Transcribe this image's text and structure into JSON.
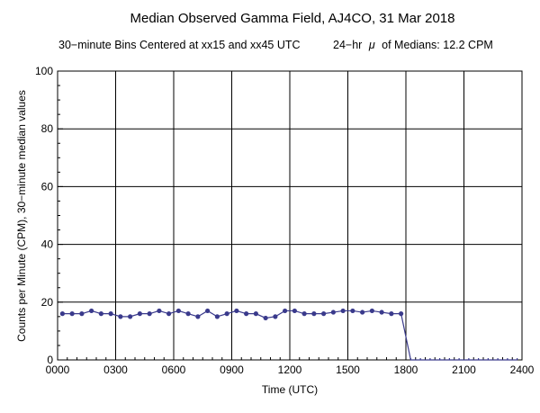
{
  "chart_data": {
    "type": "line",
    "title": "Median Observed Gamma Field, AJ4CO, 31 Mar 2018",
    "subtitle_left": "30−minute Bins Centered at xx15 and xx45 UTC",
    "subtitle_right_prefix": "24−hr",
    "subtitle_right_symbol": "μ",
    "subtitle_right_suffix": "of Medians: 12.2 CPM",
    "xlabel": "Time (UTC)",
    "ylabel": "Counts per Minute (CPM), 30−minute median values",
    "xlim": [
      0,
      24
    ],
    "ylim": [
      0,
      100
    ],
    "grid": true,
    "x_ticks": [
      {
        "value": 0,
        "label": "0000"
      },
      {
        "value": 3,
        "label": "0300"
      },
      {
        "value": 6,
        "label": "0600"
      },
      {
        "value": 9,
        "label": "0900"
      },
      {
        "value": 12,
        "label": "1200"
      },
      {
        "value": 15,
        "label": "1500"
      },
      {
        "value": 18,
        "label": "1800"
      },
      {
        "value": 21,
        "label": "2100"
      },
      {
        "value": 24,
        "label": "2400"
      }
    ],
    "y_ticks": [
      {
        "value": 0,
        "label": "0"
      },
      {
        "value": 20,
        "label": "20"
      },
      {
        "value": 40,
        "label": "40"
      },
      {
        "value": 60,
        "label": "60"
      },
      {
        "value": 80,
        "label": "80"
      },
      {
        "value": 100,
        "label": "100"
      }
    ],
    "line_color": "#3a3a8c",
    "series": [
      {
        "x": [
          0.25,
          0.75,
          1.25,
          1.75,
          2.25,
          2.75,
          3.25,
          3.75,
          4.25,
          4.75,
          5.25,
          5.75,
          6.25,
          6.75,
          7.25,
          7.75,
          8.25,
          8.75,
          9.25,
          9.75,
          10.25,
          10.75,
          11.25,
          11.75,
          12.25,
          12.75,
          13.25,
          13.75,
          14.25,
          14.75,
          15.25,
          15.75,
          16.25,
          16.75,
          17.25,
          17.75,
          18.25,
          18.75,
          19.25,
          19.75,
          20.25,
          20.75,
          21.25,
          21.75,
          22.25,
          22.75,
          23.25,
          23.75
        ],
        "values": [
          16,
          16,
          16,
          17,
          16,
          16,
          15,
          15,
          16,
          16,
          17,
          16,
          17,
          16,
          15,
          17,
          15,
          16,
          17,
          16,
          16,
          14.5,
          15,
          17,
          17,
          16,
          16,
          16,
          16.5,
          17,
          17,
          16.5,
          17,
          16.5,
          16,
          16,
          0,
          0,
          0,
          0,
          0,
          0,
          0,
          0,
          0,
          0,
          0,
          0
        ]
      }
    ]
  }
}
